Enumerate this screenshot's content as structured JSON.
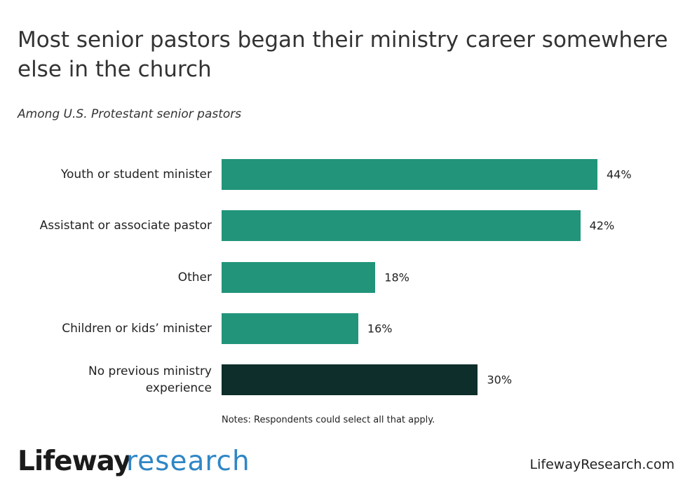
{
  "chart_data": {
    "type": "bar",
    "orientation": "horizontal",
    "title": "Most senior pastors began their ministry career somewhere else in the church",
    "subtitle": "Among U.S. Protestant senior pastors",
    "categories": [
      "Youth or student minister",
      "Assistant or associate pastor",
      "Other",
      "Children or kids’ minister",
      "No previous ministry experience"
    ],
    "values": [
      44,
      42,
      18,
      16,
      30
    ],
    "value_labels": [
      "44%",
      "42%",
      "18%",
      "16%",
      "30%"
    ],
    "colors": [
      "#22947a",
      "#22947a",
      "#22947a",
      "#22947a",
      "#0d2e2b"
    ],
    "note": "Notes: Respondents could select all that apply."
  },
  "footer": {
    "brand": "Lifeway",
    "brand_suffix": "research",
    "url": "LifewayResearch.com"
  }
}
